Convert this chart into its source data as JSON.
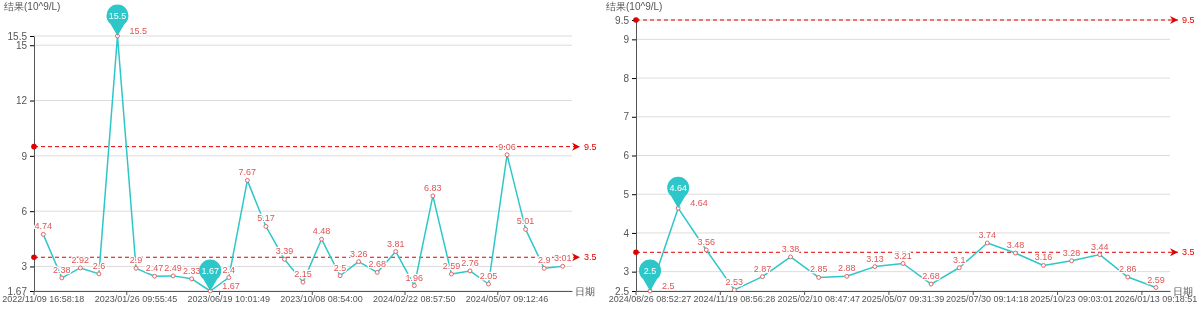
{
  "chart_data": [
    {
      "type": "line",
      "ylabel": "结果(10^9/L)",
      "xlabel": "日期",
      "categories": [
        "2022/11/09 16:58:18",
        null,
        null,
        null,
        null,
        "2023/01/26 09:55:45",
        null,
        null,
        null,
        null,
        "2023/06/19 10:01:49",
        null,
        null,
        null,
        null,
        "2023/10/08 08:54:00",
        null,
        null,
        null,
        null,
        "2024/02/22 08:57:50",
        null,
        null,
        null,
        null,
        "2024/05/07 09:12:46",
        null,
        null,
        null
      ],
      "series": [
        {
          "color": "#2ec7c9",
          "values": [
            4.74,
            2.38,
            2.92,
            2.6,
            15.5,
            2.9,
            2.47,
            2.49,
            2.33,
            1.67,
            2.4,
            7.67,
            5.17,
            3.39,
            2.15,
            4.48,
            2.5,
            3.26,
            2.68,
            3.81,
            1.96,
            6.83,
            2.59,
            2.76,
            2.05,
            9.06,
            5.01,
            2.9,
            3.01
          ]
        }
      ],
      "ylim": [
        1.67,
        15.5
      ],
      "yticks": [
        1.67,
        3,
        6,
        9,
        12,
        15,
        15.5
      ],
      "grid": "y",
      "marker": "circle",
      "data_labels": true,
      "ref_lines": [
        {
          "axis": "y",
          "value": 9.5,
          "label": "9.5",
          "color": "#e00000",
          "line_style": "dashed"
        },
        {
          "axis": "y",
          "value": 3.5,
          "label": "3.5",
          "color": "#e00000",
          "line_style": "dashed"
        }
      ],
      "annotations": [
        {
          "text": "15.5",
          "y": 15.5
        },
        {
          "text": "1.67",
          "y": 1.67
        }
      ]
    },
    {
      "type": "line",
      "ylabel": "结果(10^9/L)",
      "xlabel": "日期",
      "categories": [
        "2024/08/26 08:52:27",
        null,
        null,
        "2024/11/19 08:56:28",
        null,
        null,
        "2025/02/10 08:47:47",
        null,
        null,
        "2025/05/07 09:31:39",
        null,
        null,
        "2025/07/30 09:14:18",
        null,
        null,
        "2025/10/23 09:03:01",
        null,
        null,
        "2026/01/13 09:18:51"
      ],
      "series": [
        {
          "color": "#2ec7c9",
          "values": [
            2.5,
            4.64,
            3.56,
            2.53,
            2.87,
            3.38,
            2.85,
            2.88,
            3.13,
            3.21,
            2.68,
            3.1,
            3.74,
            3.48,
            3.16,
            3.28,
            3.44,
            2.86,
            2.59
          ]
        }
      ],
      "ylim": [
        2.5,
        9.5
      ],
      "yticks": [
        2.5,
        3,
        4,
        5,
        6,
        7,
        8,
        9,
        9.5
      ],
      "grid": "y",
      "marker": "circle",
      "data_labels": true,
      "ref_lines": [
        {
          "axis": "y",
          "value": 9.5,
          "label": "9.5",
          "color": "#e00000",
          "line_style": "dashed"
        },
        {
          "axis": "y",
          "value": 3.5,
          "label": "3.5",
          "color": "#e00000",
          "line_style": "dashed"
        }
      ],
      "annotations": [
        {
          "text": "4.64",
          "y": 4.64
        },
        {
          "text": "2.5",
          "y": 2.5
        }
      ]
    }
  ]
}
